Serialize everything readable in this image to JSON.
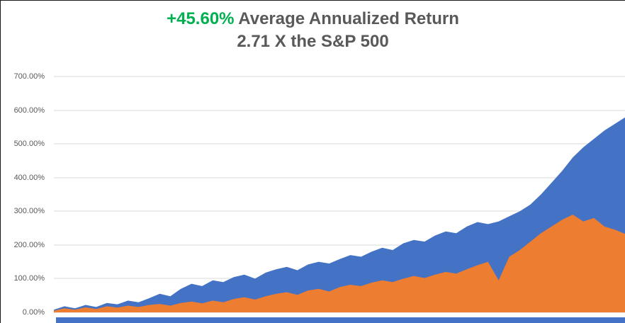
{
  "title": {
    "highlight": "+45.60%",
    "rest": " Average Annualized Return",
    "line2": "2.71 X the S&P 500",
    "highlight_color": "#00B050",
    "text_color": "#595959"
  },
  "chart_data": {
    "type": "area",
    "title": "+45.60% Average Annualized Return",
    "subtitle": "2.71 X the S&P 500",
    "xlabel": "",
    "ylabel": "",
    "ylim": [
      0,
      700
    ],
    "grid": true,
    "legend_position": "none",
    "ytick_labels_top_to_bottom": [
      "700.00%",
      "600.00%",
      "500.00%",
      "400.00%",
      "300.00%",
      "200.00%",
      "100.00%",
      "0.00%"
    ],
    "series": [
      {
        "name": "blue",
        "color": "#4472C4",
        "values": [
          8,
          18,
          12,
          22,
          16,
          28,
          24,
          35,
          30,
          42,
          55,
          48,
          70,
          85,
          78,
          95,
          90,
          105,
          112,
          100,
          118,
          128,
          135,
          125,
          142,
          150,
          145,
          158,
          170,
          165,
          180,
          192,
          185,
          205,
          215,
          210,
          228,
          240,
          235,
          255,
          268,
          262,
          270,
          285,
          300,
          320,
          350,
          385,
          420,
          460,
          490,
          515,
          540,
          560,
          580
        ]
      },
      {
        "name": "orange",
        "color": "#ED7D31",
        "values": [
          5,
          12,
          8,
          15,
          10,
          18,
          14,
          20,
          16,
          22,
          25,
          20,
          28,
          32,
          27,
          35,
          30,
          40,
          45,
          38,
          48,
          55,
          60,
          52,
          65,
          70,
          62,
          75,
          82,
          78,
          88,
          95,
          90,
          100,
          108,
          102,
          112,
          120,
          115,
          128,
          140,
          150,
          95,
          165,
          185,
          210,
          235,
          255,
          275,
          290,
          270,
          280,
          255,
          245,
          232
        ]
      }
    ],
    "colors": {
      "gridline": "#D9D9D9",
      "tick_text": "#595959"
    }
  },
  "footer": {
    "bar_color": "#4472C4"
  }
}
